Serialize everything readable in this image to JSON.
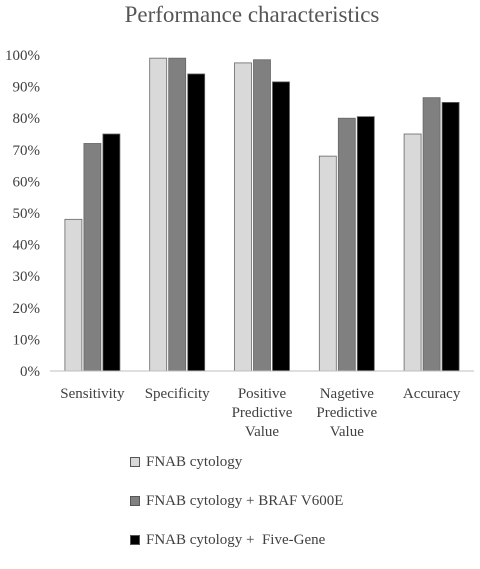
{
  "chart_data": {
    "type": "bar",
    "title": "Performance characteristics",
    "categories": [
      [
        "Sensitivity"
      ],
      [
        "Specificity"
      ],
      [
        "Positive",
        "Predictive",
        "Value"
      ],
      [
        "Nagetive",
        "Predictive",
        "Value"
      ],
      [
        "Accuracy"
      ]
    ],
    "y_ticks": [
      "0%",
      "10%",
      "20%",
      "30%",
      "40%",
      "50%",
      "60%",
      "70%",
      "80%",
      "90%",
      "100%"
    ],
    "ylim": [
      0,
      100
    ],
    "grid": false,
    "legend_position": "bottom",
    "series": [
      {
        "name": "FNAB cytology",
        "color": "#d9d9d9",
        "values": [
          48,
          99,
          97.5,
          68,
          75
        ]
      },
      {
        "name": "FNAB cytology + BRAF V600E",
        "color": "#808080",
        "values": [
          72,
          99,
          98.5,
          80,
          86.5
        ]
      },
      {
        "name": "FNAB cytology +  Five-Gene",
        "color": "#000000",
        "values": [
          75,
          94,
          91.5,
          80.5,
          85
        ]
      }
    ]
  }
}
